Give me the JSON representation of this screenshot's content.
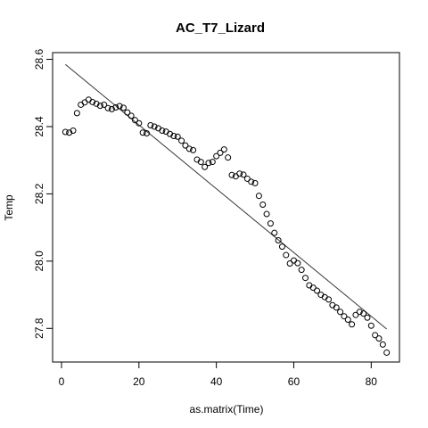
{
  "chart_data": {
    "type": "scatter",
    "title": "AC_T7_Lizard",
    "xlabel": "as.matrix(Time)",
    "ylabel": "Temp",
    "xlim": [
      -2.3,
      87.3
    ],
    "ylim": [
      27.7,
      28.62
    ],
    "xticks": [
      0,
      20,
      40,
      60,
      80
    ],
    "yticks": [
      27.8,
      28.0,
      28.2,
      28.4,
      28.6
    ],
    "xtick_labels": [
      "0",
      "20",
      "40",
      "60",
      "80"
    ],
    "ytick_labels": [
      "27.8",
      "28.0",
      "28.2",
      "28.4",
      "28.6"
    ],
    "grid": false,
    "series": [
      {
        "marker": "open-circle",
        "x": [
          1,
          2,
          3,
          4,
          5,
          6,
          7,
          8,
          9,
          10,
          11,
          12,
          13,
          14,
          15,
          16,
          17,
          18,
          19,
          20,
          21,
          22,
          23,
          24,
          25,
          26,
          27,
          28,
          29,
          30,
          31,
          32,
          33,
          34,
          35,
          36,
          37,
          38,
          39,
          40,
          41,
          42,
          43,
          44,
          45,
          46,
          47,
          48,
          49,
          50,
          51,
          52,
          53,
          54,
          55,
          56,
          57,
          58,
          59,
          60,
          61,
          62,
          63,
          64,
          65,
          66,
          67,
          68,
          69,
          70,
          71,
          72,
          73,
          74,
          75,
          76,
          77,
          78,
          79,
          80,
          81,
          82,
          83,
          84
        ],
        "y": [
          28.384,
          28.382,
          28.388,
          28.44,
          28.465,
          28.472,
          28.48,
          28.473,
          28.468,
          28.462,
          28.465,
          28.455,
          28.452,
          28.457,
          28.461,
          28.456,
          28.442,
          28.432,
          28.419,
          28.41,
          28.382,
          28.38,
          28.404,
          28.4,
          28.395,
          28.388,
          28.385,
          28.378,
          28.372,
          28.37,
          28.358,
          28.344,
          28.334,
          28.33,
          28.302,
          28.295,
          28.28,
          28.292,
          28.295,
          28.312,
          28.322,
          28.332,
          28.308,
          28.256,
          28.252,
          28.26,
          28.257,
          28.245,
          28.236,
          28.232,
          28.194,
          28.168,
          28.14,
          28.112,
          28.084,
          28.062,
          28.043,
          28.018,
          27.993,
          28.002,
          27.994,
          27.974,
          27.95,
          27.928,
          27.921,
          27.912,
          27.9,
          27.893,
          27.886,
          27.869,
          27.862,
          27.849,
          27.836,
          27.826,
          27.812,
          27.84,
          27.849,
          27.844,
          27.832,
          27.808,
          27.78,
          27.77,
          27.752,
          27.728
        ]
      },
      {
        "type": "line",
        "x": [
          1,
          84
        ],
        "y": [
          28.585,
          27.798
        ]
      }
    ]
  }
}
